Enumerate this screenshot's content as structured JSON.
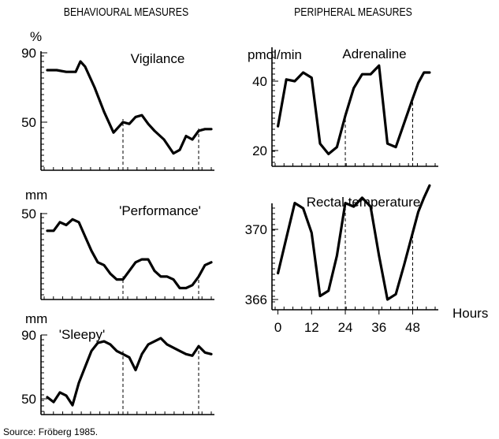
{
  "headings": {
    "left": "BEHAVIOURAL MEASURES",
    "right": "PERIPHERAL MEASURES"
  },
  "source": "Source: Fröberg 1985.",
  "chart_data": [
    {
      "id": "vigilance",
      "type": "line",
      "title": "Vigilance",
      "unit": "%",
      "yticks": [
        90,
        50
      ],
      "ylim": [
        30,
        95
      ],
      "x": [
        0,
        3,
        6,
        9,
        10.5,
        12,
        15,
        18,
        21,
        24,
        26,
        28,
        30,
        32,
        34,
        37,
        40,
        42,
        44,
        46,
        48,
        50,
        52
      ],
      "values": [
        80,
        80,
        79,
        79,
        85,
        82,
        70,
        56,
        44,
        50,
        49,
        53,
        54,
        49,
        45,
        40,
        32,
        34,
        42,
        40,
        45,
        46,
        46
      ],
      "xlim": [
        -1,
        52
      ]
    },
    {
      "id": "performance",
      "type": "line",
      "title": "'Performance'",
      "unit": "mm",
      "yticks": [
        50
      ],
      "ylim": [
        20,
        53
      ],
      "x": [
        0,
        2,
        4,
        6,
        8,
        10,
        12,
        14,
        16,
        18,
        20,
        22,
        24,
        26,
        28,
        30,
        32,
        34,
        36,
        38,
        40,
        42,
        44,
        46,
        48,
        50,
        52
      ],
      "values": [
        44,
        44,
        47,
        46,
        48,
        47,
        42,
        37,
        33,
        32,
        29,
        27,
        27,
        30,
        33,
        34,
        34,
        30,
        28,
        28,
        27,
        24,
        24,
        25,
        28,
        32,
        33
      ],
      "xlim": [
        -1,
        52
      ]
    },
    {
      "id": "sleepy",
      "type": "line",
      "title": "'Sleepy'",
      "unit": "mm",
      "yticks": [
        90,
        50
      ],
      "ylim": [
        42,
        93
      ],
      "x": [
        0,
        2,
        4,
        6,
        8,
        10,
        12,
        14,
        16,
        18,
        20,
        22,
        24,
        26,
        28,
        30,
        32,
        34,
        36,
        38,
        40,
        42,
        44,
        46,
        48,
        50,
        52
      ],
      "values": [
        51,
        48,
        54,
        52,
        46,
        60,
        70,
        80,
        85,
        86,
        84,
        80,
        78,
        76,
        68,
        78,
        84,
        86,
        88,
        84,
        82,
        80,
        78,
        77,
        83,
        79,
        78
      ],
      "xlim": [
        -1,
        52
      ]
    },
    {
      "id": "adrenaline",
      "type": "line",
      "title": "Adrenaline",
      "unit": "pmol/min",
      "yticks": [
        40,
        20
      ],
      "ylim": [
        16,
        47
      ],
      "x": [
        0,
        3,
        6,
        9,
        12,
        15,
        18,
        21,
        24,
        27,
        30,
        33,
        36,
        39,
        42,
        45,
        48,
        50,
        52,
        54
      ],
      "values": [
        27,
        40.5,
        40,
        42.5,
        41,
        22,
        19,
        21,
        30,
        38,
        42,
        42,
        44.5,
        22,
        21,
        28,
        35,
        39.5,
        42.5,
        42.5
      ],
      "xlim": [
        -1,
        56
      ]
    },
    {
      "id": "rectal-temperature",
      "type": "line",
      "title": "Rectal temperature",
      "unit": "",
      "yticks": [
        370,
        366
      ],
      "ylim": [
        365,
        373
      ],
      "x": [
        0,
        3,
        6,
        9,
        12,
        15,
        18,
        21,
        24,
        27,
        30,
        33,
        36,
        39,
        42,
        45,
        48,
        50,
        52,
        54
      ],
      "values": [
        367.5,
        369.5,
        371.5,
        371.2,
        369.8,
        366.2,
        366.5,
        368.5,
        371.5,
        371.3,
        371.8,
        371.3,
        368.5,
        366,
        366.3,
        368,
        369.8,
        371,
        371.8,
        372.5
      ],
      "xlim": [
        -1,
        56
      ],
      "xticks": [
        0,
        12,
        24,
        36,
        48
      ],
      "xlabel": "Hours"
    }
  ]
}
